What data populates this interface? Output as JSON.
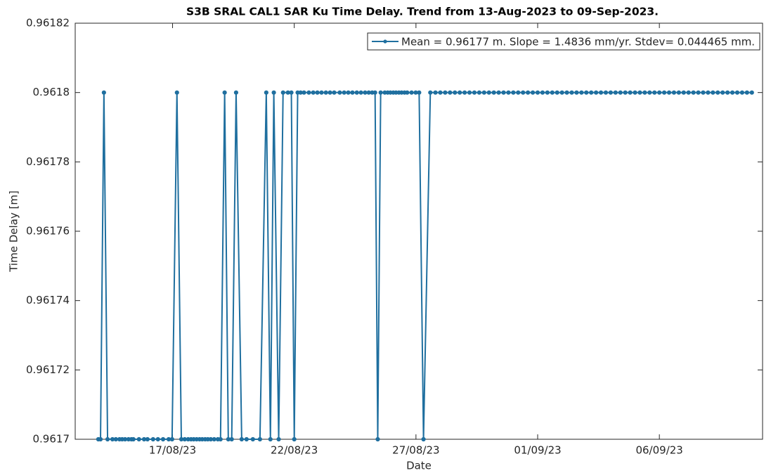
{
  "chart_data": {
    "type": "line",
    "title": "S3B SRAL CAL1 SAR Ku Time Delay. Trend from 13-Aug-2023 to 09-Sep-2023.",
    "xlabel": "Date",
    "ylabel": "Time Delay [m]",
    "xlim": [
      13,
      41.24
    ],
    "xticks": [
      {
        "value": 17,
        "label": "17/08/23"
      },
      {
        "value": 22,
        "label": "22/08/23"
      },
      {
        "value": 27,
        "label": "27/08/23"
      },
      {
        "value": 32,
        "label": "01/09/23"
      },
      {
        "value": 37,
        "label": "06/09/23"
      }
    ],
    "ylim": [
      0.9617,
      0.96182
    ],
    "yticks": [
      0.9617,
      0.96172,
      0.96174,
      0.96176,
      0.96178,
      0.9618,
      0.96182
    ],
    "legend": "upper right",
    "x": [
      13.95,
      14.04,
      14.18,
      14.33,
      14.53,
      14.67,
      14.82,
      14.93,
      15.05,
      15.19,
      15.31,
      15.39,
      15.62,
      15.83,
      15.97,
      16.2,
      16.4,
      16.61,
      16.84,
      16.98,
      17.18,
      17.36,
      17.5,
      17.64,
      17.76,
      17.87,
      17.99,
      18.11,
      18.22,
      18.34,
      18.45,
      18.57,
      18.71,
      18.86,
      18.97,
      19.14,
      19.29,
      19.43,
      19.61,
      19.84,
      20.04,
      20.3,
      20.59,
      20.85,
      21.02,
      21.16,
      21.36,
      21.54,
      21.74,
      21.88,
      22.0,
      22.14,
      22.26,
      22.4,
      22.6,
      22.78,
      22.95,
      23.12,
      23.3,
      23.47,
      23.64,
      23.87,
      24.05,
      24.22,
      24.39,
      24.57,
      24.74,
      24.91,
      25.06,
      25.2,
      25.32,
      25.43,
      25.55,
      25.72,
      25.84,
      25.95,
      26.07,
      26.18,
      26.3,
      26.41,
      26.53,
      26.64,
      26.82,
      26.99,
      27.13,
      27.31,
      27.59,
      27.8,
      28.0,
      28.2,
      28.4,
      28.6,
      28.8,
      29.0,
      29.2,
      29.4,
      29.6,
      29.8,
      30.0,
      30.2,
      30.4,
      30.6,
      30.8,
      31.0,
      31.2,
      31.4,
      31.6,
      31.8,
      32.0,
      32.2,
      32.4,
      32.6,
      32.8,
      33.0,
      33.2,
      33.4,
      33.6,
      33.8,
      34.0,
      34.2,
      34.4,
      34.6,
      34.8,
      35.0,
      35.2,
      35.4,
      35.6,
      35.8,
      36.0,
      36.2,
      36.4,
      36.6,
      36.8,
      37.0,
      37.2,
      37.4,
      37.6,
      37.8,
      38.0,
      38.2,
      38.4,
      38.6,
      38.8,
      39.0,
      39.2,
      39.4,
      39.6,
      39.8,
      40.0,
      40.2,
      40.4,
      40.6,
      40.8
    ],
    "series": [
      {
        "name": "Mean = 0.96177 m. Slope = 1.4836 mm/yr. Stdev= 0.044465 mm.",
        "color": "#1f6f9f",
        "values": [
          0.9617,
          0.9617,
          0.9618,
          0.9617,
          0.9617,
          0.9617,
          0.9617,
          0.9617,
          0.9617,
          0.9617,
          0.9617,
          0.9617,
          0.9617,
          0.9617,
          0.9617,
          0.9617,
          0.9617,
          0.9617,
          0.9617,
          0.9617,
          0.9618,
          0.9617,
          0.9617,
          0.9617,
          0.9617,
          0.9617,
          0.9617,
          0.9617,
          0.9617,
          0.9617,
          0.9617,
          0.9617,
          0.9617,
          0.9617,
          0.9617,
          0.9618,
          0.9617,
          0.9617,
          0.9618,
          0.9617,
          0.9617,
          0.9617,
          0.9617,
          0.9618,
          0.9617,
          0.9618,
          0.9617,
          0.9618,
          0.9618,
          0.9618,
          0.9617,
          0.9618,
          0.9618,
          0.9618,
          0.9618,
          0.9618,
          0.9618,
          0.9618,
          0.9618,
          0.9618,
          0.9618,
          0.9618,
          0.9618,
          0.9618,
          0.9618,
          0.9618,
          0.9618,
          0.9618,
          0.9618,
          0.9618,
          0.9618,
          0.9617,
          0.9618,
          0.9618,
          0.9618,
          0.9618,
          0.9618,
          0.9618,
          0.9618,
          0.9618,
          0.9618,
          0.9618,
          0.9618,
          0.9618,
          0.9618,
          0.9617,
          0.9618,
          0.9618,
          0.9618,
          0.9618,
          0.9618,
          0.9618,
          0.9618,
          0.9618,
          0.9618,
          0.9618,
          0.9618,
          0.9618,
          0.9618,
          0.9618,
          0.9618,
          0.9618,
          0.9618,
          0.9618,
          0.9618,
          0.9618,
          0.9618,
          0.9618,
          0.9618,
          0.9618,
          0.9618,
          0.9618,
          0.9618,
          0.9618,
          0.9618,
          0.9618,
          0.9618,
          0.9618,
          0.9618,
          0.9618,
          0.9618,
          0.9618,
          0.9618,
          0.9618,
          0.9618,
          0.9618,
          0.9618,
          0.9618,
          0.9618,
          0.9618,
          0.9618,
          0.9618,
          0.9618,
          0.9618,
          0.9618,
          0.9618,
          0.9618,
          0.9618,
          0.9618,
          0.9618,
          0.9618,
          0.9618,
          0.9618,
          0.9618,
          0.9618,
          0.9618,
          0.9618,
          0.9618,
          0.9618,
          0.9618,
          0.9618,
          0.9618,
          0.9618
        ]
      }
    ]
  }
}
